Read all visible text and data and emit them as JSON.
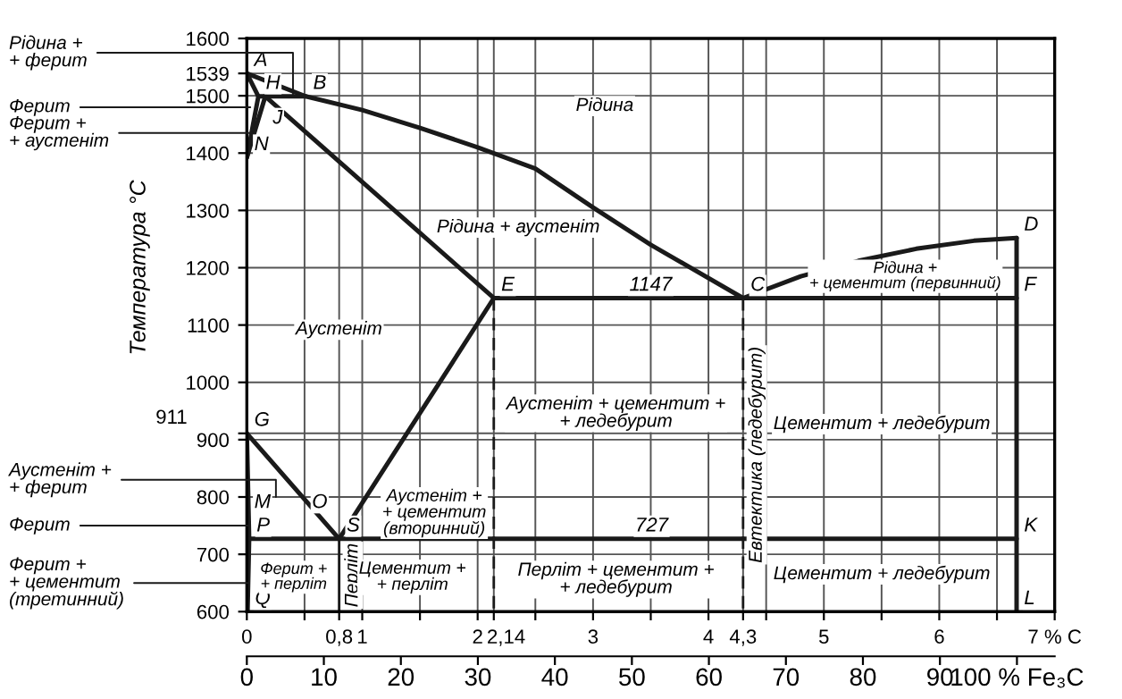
{
  "chart_data": {
    "type": "line",
    "ylabel": "Температура °С",
    "xlim": [
      0,
      7
    ],
    "ylim": [
      600,
      1600
    ],
    "xticks": [
      0,
      {
        "value": 0.5,
        "label": null
      },
      {
        "value": 0.8,
        "label": "0,8"
      },
      1,
      {
        "value": 1.5,
        "label": null
      },
      2,
      {
        "value": 2.14,
        "label": "2,14"
      },
      {
        "value": 2.5,
        "label": null
      },
      3,
      {
        "value": 3.5,
        "label": null
      },
      4,
      {
        "value": 4.3,
        "label": "4,3"
      },
      {
        "value": 4.5,
        "label": null
      },
      5,
      {
        "value": 5.5,
        "label": null
      },
      6,
      {
        "value": 6.5,
        "label": null
      },
      {
        "value": 7,
        "label": "7 % C"
      }
    ],
    "yticks": [
      600,
      700,
      800,
      900,
      {
        "value": 911,
        "label": null
      },
      1000,
      1100,
      1200,
      1300,
      1400,
      1500,
      1539,
      1600
    ],
    "x2lim": [
      0,
      104.9
    ],
    "x2ticks": [
      0,
      10,
      20,
      30,
      40,
      50,
      60,
      70,
      80,
      90,
      {
        "value": 100,
        "label": "100 % Fe₃C"
      }
    ],
    "grid": true,
    "legend": false,
    "series": [
      {
        "color": "#1a1a1a",
        "x": [
          0,
          0.51,
          1.0,
          1.5,
          2.0,
          2.5,
          3.0,
          3.5,
          4.3,
          4.8,
          5.3,
          5.8,
          6.3,
          6.67
        ],
        "values": [
          1539,
          1499,
          1475,
          1444,
          1410,
          1373,
          1305,
          1240,
          1147,
          1185,
          1212,
          1233,
          1247,
          1252
        ]
      },
      {
        "color": "#1a1a1a",
        "x": [
          0,
          0.1,
          0
        ],
        "values": [
          1539,
          1499,
          1392
        ]
      },
      {
        "color": "#1a1a1a",
        "x": [
          0.1,
          0.51
        ],
        "values": [
          1499,
          1499
        ]
      },
      {
        "color": "#1a1a1a",
        "x": [
          0.16,
          0
        ],
        "values": [
          1499,
          1392
        ]
      },
      {
        "color": "#1a1a1a",
        "x": [
          0.16,
          2.14
        ],
        "values": [
          1499,
          1147
        ]
      },
      {
        "color": "#1a1a1a",
        "x": [
          2.14,
          6.67
        ],
        "values": [
          1147,
          1147
        ]
      },
      {
        "color": "#1a1a1a",
        "x": [
          2.14,
          0.8
        ],
        "values": [
          1147,
          727
        ]
      },
      {
        "color": "#1a1a1a",
        "x": [
          0,
          0.8
        ],
        "values": [
          911,
          727
        ]
      },
      {
        "color": "#1a1a1a",
        "x": [
          0,
          0.02,
          0.006
        ],
        "values": [
          911,
          727,
          600
        ]
      },
      {
        "color": "#1a1a1a",
        "x": [
          0.02,
          6.67
        ],
        "values": [
          727,
          727
        ]
      },
      {
        "color": "#1a1a1a",
        "x": [
          6.67,
          6.67
        ],
        "values": [
          1252,
          600
        ]
      },
      {
        "color": "#1a1a1a",
        "line_style": "dashed",
        "x": [
          2.14,
          2.14
        ],
        "values": [
          1147,
          600
        ]
      },
      {
        "color": "#1a1a1a",
        "line_style": "dashed",
        "name": "Евтектика (ледебурит)",
        "x": [
          4.3,
          4.3
        ],
        "values": [
          1147,
          600
        ]
      },
      {
        "color": "#1a1a1a",
        "line_style": "solid",
        "name": "Перліт",
        "x": [
          0.8,
          0.8
        ],
        "values": [
          727,
          600
        ]
      }
    ],
    "annotations": [
      {
        "text": "A",
        "x": 0,
        "y": 1539
      },
      {
        "text": "H",
        "x": 0.1,
        "y": 1499
      },
      {
        "text": "B",
        "x": 0.51,
        "y": 1499
      },
      {
        "text": "J",
        "x": 0.16,
        "y": 1499
      },
      {
        "text": "N",
        "x": 0,
        "y": 1392
      },
      {
        "text": "E",
        "x": 2.14,
        "y": 1147
      },
      {
        "text": "C",
        "x": 4.3,
        "y": 1147
      },
      {
        "text": "F",
        "x": 6.67,
        "y": 1147
      },
      {
        "text": "D",
        "x": 6.67,
        "y": 1252
      },
      {
        "text": "G",
        "x": 0,
        "y": 911
      },
      {
        "text": "M",
        "x": 0,
        "y": 768
      },
      {
        "text": "O",
        "x": 0.5,
        "y": 768
      },
      {
        "text": "P",
        "x": 0.02,
        "y": 727
      },
      {
        "text": "S",
        "x": 0.8,
        "y": 727
      },
      {
        "text": "K",
        "x": 6.67,
        "y": 727
      },
      {
        "text": "L",
        "x": 6.67,
        "y": 600
      },
      {
        "text": "Q",
        "x": 0.006,
        "y": 600
      },
      {
        "text": "1147",
        "x": 3.25,
        "y": 1147
      },
      {
        "text": "727",
        "x": 3.3,
        "y": 727
      },
      {
        "text": "Рідина +\n+ ферит",
        "x": 0.4,
        "y": 1503
      },
      {
        "text": "Ферит",
        "x": 0.03,
        "y": 1480
      },
      {
        "text": "Ферит +\n+ аустеніт",
        "x": 0.05,
        "y": 1435
      },
      "911",
      "Аустеніт +\n+ ферит",
      {
        "text": "Ферит",
        "x": 0.008,
        "y": 750
      },
      {
        "text": "Ферит +\n+ цементит\n(третинний)",
        "x": 0.008,
        "y": 650
      },
      "Рідина",
      "Рідина + аустеніт",
      "Рідина +\n+ цементит (первинний)",
      "Аустеніт",
      "Аустеніт + цементит +\n+ ледебурит",
      "Цементит + ледебурит",
      "Аустеніт +\n+ цементит\n(вторинний)",
      "Ферит +\n+ перліт",
      "Цементит +\n+ перліт",
      "Перліт + цементит +\n+ ледебурит",
      "Цементит + ледебурит"
    ]
  }
}
